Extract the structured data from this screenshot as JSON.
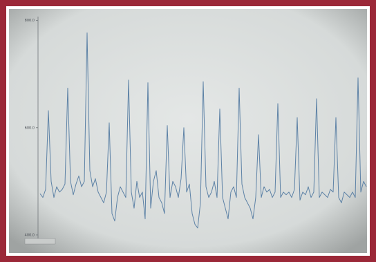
{
  "chart_data": {
    "type": "line",
    "values": [
      477,
      470,
      485,
      632,
      500,
      470,
      490,
      480,
      485,
      495,
      674,
      500,
      475,
      495,
      510,
      490,
      500,
      777,
      520,
      490,
      505,
      480,
      470,
      460,
      480,
      609,
      440,
      426,
      470,
      490,
      480,
      470,
      689,
      480,
      450,
      500,
      470,
      480,
      430,
      684,
      450,
      500,
      520,
      470,
      460,
      440,
      604,
      470,
      500,
      490,
      470,
      505,
      600,
      480,
      495,
      440,
      420,
      413,
      460,
      686,
      490,
      470,
      480,
      500,
      470,
      635,
      470,
      450,
      430,
      480,
      490,
      470,
      674,
      495,
      470,
      460,
      450,
      430,
      470,
      587,
      470,
      490,
      480,
      485,
      470,
      480,
      645,
      470,
      480,
      475,
      480,
      470,
      485,
      619,
      465,
      480,
      475,
      490,
      470,
      480,
      654,
      470,
      480,
      475,
      470,
      485,
      480,
      619,
      470,
      460,
      480,
      475,
      470,
      480,
      470,
      693,
      480,
      500,
      490
    ],
    "color": "#5d82a6",
    "ylim": [
      387,
      806
    ],
    "yticks": [
      {
        "value": 800,
        "label": "800.0"
      },
      {
        "value": 600,
        "label": "600.0"
      },
      {
        "value": 400,
        "label": "400.0"
      }
    ]
  }
}
